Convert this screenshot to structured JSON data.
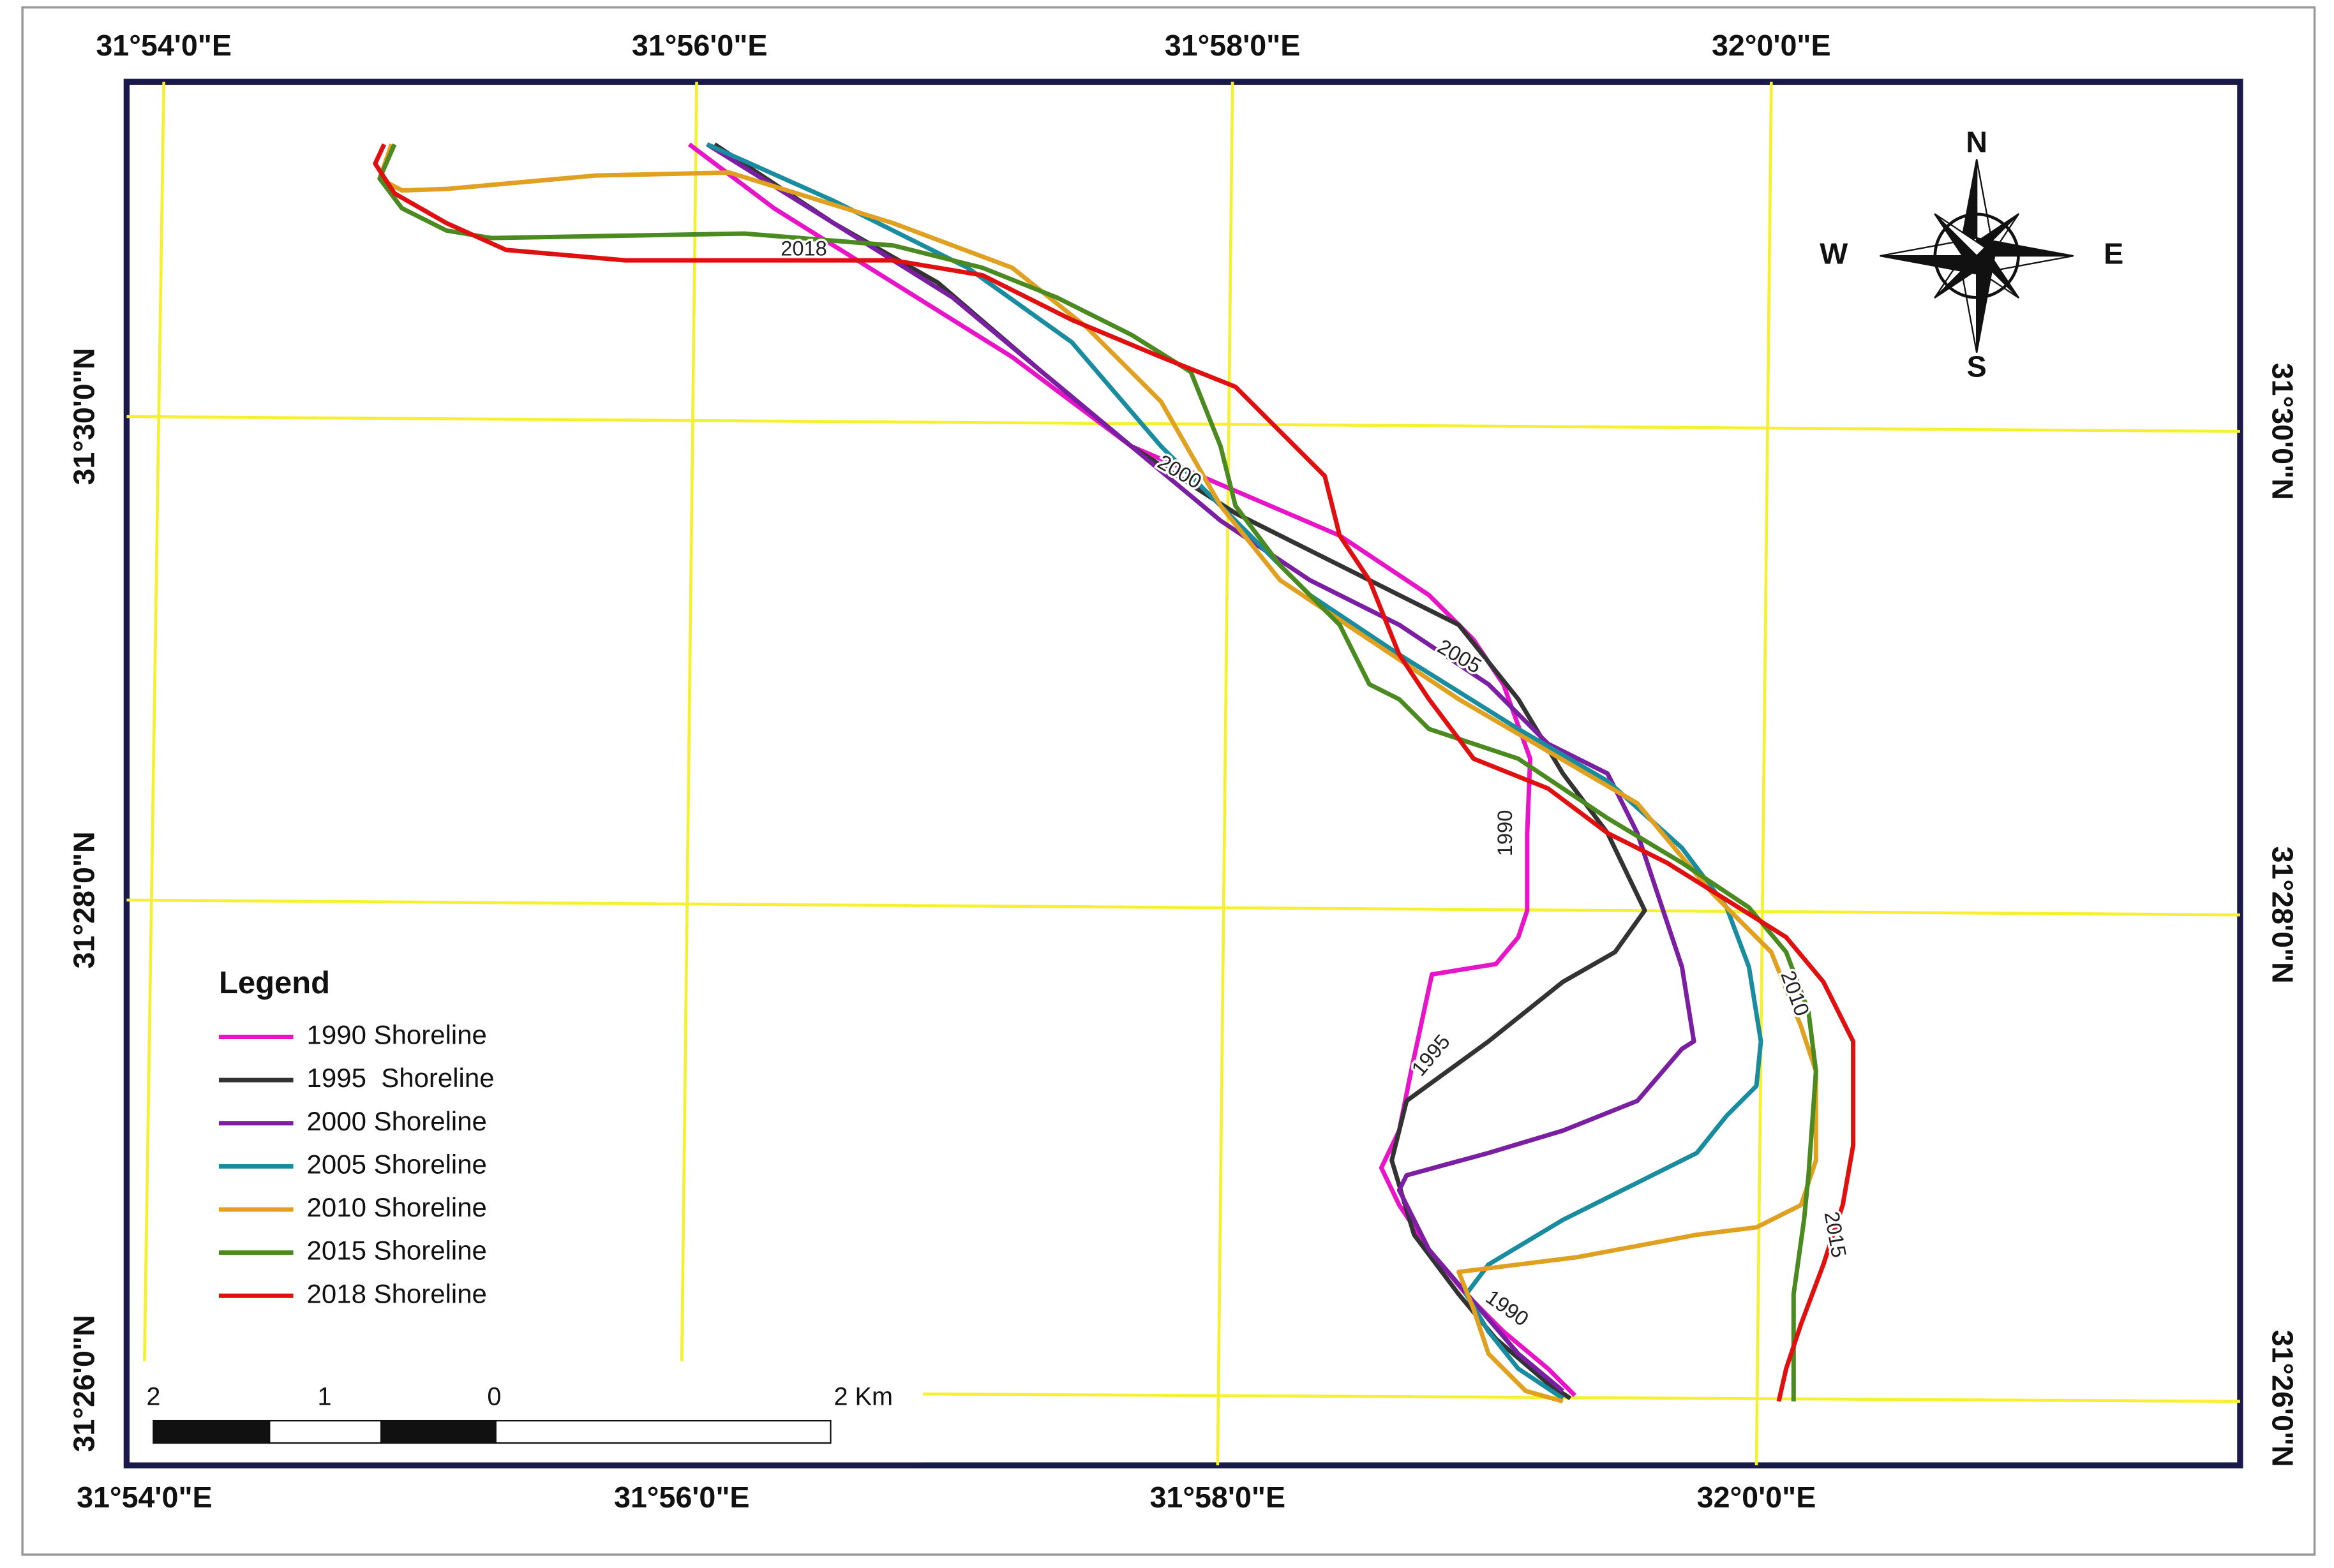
{
  "top_labels": [
    "31°54'0\"E",
    "31°56'0\"E",
    "31°58'0\"E",
    "32°0'0\"E"
  ],
  "bottom_labels": [
    "31°54'0\"E",
    "31°56'0\"E",
    "31°58'0\"E",
    "32°0'0\"E"
  ],
  "left_labels": [
    "31°30'0\"N",
    "31°28'0\"N",
    "31°26'0\"N"
  ],
  "right_labels": [
    "31°30'0\"N",
    "31°28'0\"N",
    "31°26'0\"N"
  ],
  "compass": {
    "n": "N",
    "e": "E",
    "s": "S",
    "w": "W"
  },
  "scale_bar": {
    "labels": [
      "2",
      "1",
      "0",
      "2 Km"
    ]
  },
  "legend": {
    "title": "Legend",
    "items": [
      {
        "label": "1990 Shoreline",
        "color": "#e815c8"
      },
      {
        "label": "1995  Shoreline",
        "color": "#333333"
      },
      {
        "label": "2000 Shoreline",
        "color": "#7b1fa2"
      },
      {
        "label": "2005 Shoreline",
        "color": "#1a8ca0"
      },
      {
        "label": "2010 Shoreline",
        "color": "#e0a020"
      },
      {
        "label": "2015 Shoreline",
        "color": "#4a8a20"
      },
      {
        "label": "2018 Shoreline",
        "color": "#e01010"
      }
    ]
  },
  "shoreline_labels": [
    "2018",
    "2000",
    "2005",
    "1990",
    "1995",
    "2010",
    "2015",
    "1990"
  ]
}
